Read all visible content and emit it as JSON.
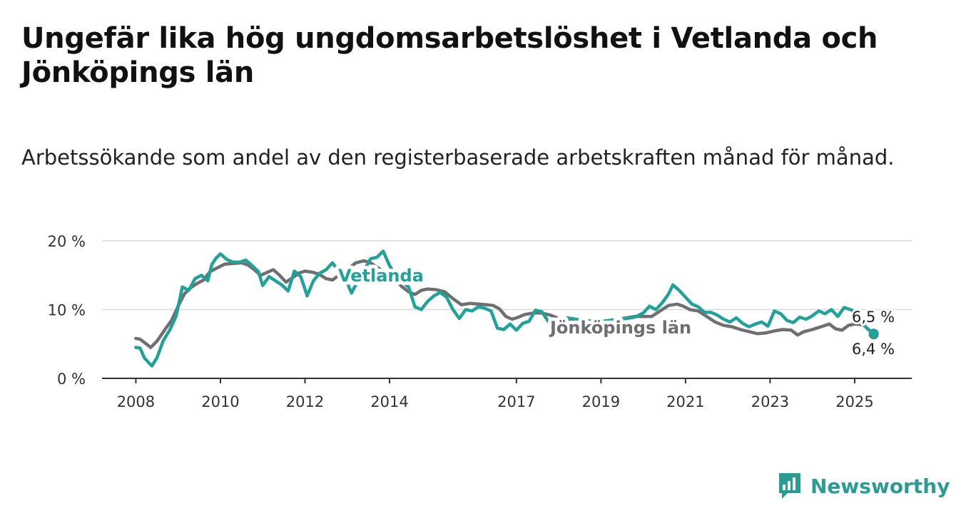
{
  "header": {
    "title": "Ungefär lika hög ungdomsarbetslöshet i Vetlanda och Jönköpings län",
    "subtitle": "Arbetssökande som andel av den registerbaserade arbetskraften månad för månad."
  },
  "brand": {
    "name": "Newsworthy",
    "icon": "bar-chart-speech-icon",
    "color": "#2a9d92"
  },
  "chart_data": {
    "type": "line",
    "x_unit": "year",
    "xlim": [
      2007.2,
      2026.35
    ],
    "ylim": [
      0,
      20
    ],
    "grid": true,
    "y_ticks": [
      {
        "value": 0,
        "label": "0 %"
      },
      {
        "value": 10,
        "label": "10 %"
      },
      {
        "value": 20,
        "label": "20 %"
      }
    ],
    "x_ticks": [
      {
        "value": 2008,
        "label": "2008"
      },
      {
        "value": 2010,
        "label": "2010"
      },
      {
        "value": 2012,
        "label": "2012"
      },
      {
        "value": 2014,
        "label": "2014"
      },
      {
        "value": 2017,
        "label": "2017"
      },
      {
        "value": 2019,
        "label": "2019"
      },
      {
        "value": 2021,
        "label": "2021"
      },
      {
        "value": 2023,
        "label": "2023"
      },
      {
        "value": 2025,
        "label": "2025"
      }
    ],
    "series": [
      {
        "name": "Jönköpings län",
        "color": "#6e6e73",
        "end_label": "6,4 %",
        "points": [
          [
            2008.0,
            5.8
          ],
          [
            2008.1,
            5.7
          ],
          [
            2008.25,
            5.0
          ],
          [
            2008.35,
            4.5
          ],
          [
            2008.5,
            5.4
          ],
          [
            2008.7,
            7.2
          ],
          [
            2008.85,
            8.5
          ],
          [
            2009.0,
            10.5
          ],
          [
            2009.15,
            12.3
          ],
          [
            2009.3,
            13.2
          ],
          [
            2009.45,
            13.8
          ],
          [
            2009.6,
            14.3
          ],
          [
            2009.75,
            15.5
          ],
          [
            2009.9,
            16.0
          ],
          [
            2010.1,
            16.6
          ],
          [
            2010.3,
            16.7
          ],
          [
            2010.5,
            16.8
          ],
          [
            2010.65,
            16.5
          ],
          [
            2010.8,
            15.8
          ],
          [
            2010.95,
            15.0
          ],
          [
            2011.1,
            15.4
          ],
          [
            2011.25,
            15.8
          ],
          [
            2011.4,
            15.0
          ],
          [
            2011.55,
            14.0
          ],
          [
            2011.7,
            14.6
          ],
          [
            2011.85,
            15.3
          ],
          [
            2012.0,
            15.6
          ],
          [
            2012.2,
            15.4
          ],
          [
            2012.35,
            15.1
          ],
          [
            2012.5,
            14.5
          ],
          [
            2012.65,
            14.3
          ],
          [
            2012.8,
            15.0
          ],
          [
            2013.0,
            15.8
          ],
          [
            2013.2,
            16.8
          ],
          [
            2013.4,
            17.1
          ],
          [
            2013.55,
            16.8
          ],
          [
            2013.7,
            16.2
          ],
          [
            2013.85,
            15.6
          ],
          [
            2014.0,
            15.0
          ],
          [
            2014.15,
            14.2
          ],
          [
            2014.3,
            13.3
          ],
          [
            2014.45,
            12.6
          ],
          [
            2014.6,
            12.2
          ],
          [
            2014.75,
            12.8
          ],
          [
            2014.9,
            13.0
          ],
          [
            2015.1,
            12.9
          ],
          [
            2015.3,
            12.6
          ],
          [
            2015.5,
            11.6
          ],
          [
            2015.7,
            10.7
          ],
          [
            2015.9,
            10.9
          ],
          [
            2016.1,
            10.8
          ],
          [
            2016.3,
            10.7
          ],
          [
            2016.45,
            10.6
          ],
          [
            2016.6,
            10.1
          ],
          [
            2016.75,
            9.0
          ],
          [
            2016.9,
            8.6
          ],
          [
            2017.05,
            8.9
          ],
          [
            2017.2,
            9.3
          ],
          [
            2017.4,
            9.5
          ],
          [
            2017.6,
            9.5
          ],
          [
            2017.8,
            9.2
          ],
          [
            2018.0,
            8.7
          ],
          [
            2018.2,
            8.6
          ],
          [
            2018.4,
            8.5
          ],
          [
            2018.6,
            8.4
          ],
          [
            2018.8,
            8.3
          ],
          [
            2019.0,
            8.2
          ],
          [
            2019.2,
            8.4
          ],
          [
            2019.4,
            8.6
          ],
          [
            2019.6,
            8.8
          ],
          [
            2019.8,
            9.0
          ],
          [
            2020.0,
            9.0
          ],
          [
            2020.2,
            9.0
          ],
          [
            2020.4,
            9.8
          ],
          [
            2020.6,
            10.6
          ],
          [
            2020.8,
            10.8
          ],
          [
            2020.95,
            10.5
          ],
          [
            2021.1,
            10.0
          ],
          [
            2021.3,
            9.8
          ],
          [
            2021.5,
            9.0
          ],
          [
            2021.7,
            8.2
          ],
          [
            2021.9,
            7.7
          ],
          [
            2022.1,
            7.5
          ],
          [
            2022.3,
            7.1
          ],
          [
            2022.5,
            6.8
          ],
          [
            2022.7,
            6.5
          ],
          [
            2022.9,
            6.6
          ],
          [
            2023.1,
            6.9
          ],
          [
            2023.3,
            7.1
          ],
          [
            2023.5,
            7.0
          ],
          [
            2023.65,
            6.3
          ],
          [
            2023.8,
            6.8
          ],
          [
            2024.0,
            7.1
          ],
          [
            2024.2,
            7.5
          ],
          [
            2024.4,
            7.9
          ],
          [
            2024.55,
            7.2
          ],
          [
            2024.7,
            7.0
          ],
          [
            2024.85,
            7.7
          ],
          [
            2025.0,
            7.9
          ],
          [
            2025.2,
            7.8
          ],
          [
            2025.35,
            7.0
          ],
          [
            2025.45,
            6.4
          ]
        ]
      },
      {
        "name": "Vetlanda",
        "color": "#1fa399",
        "end_label": "6,5 %",
        "points": [
          [
            2008.0,
            4.5
          ],
          [
            2008.1,
            4.4
          ],
          [
            2008.2,
            3.0
          ],
          [
            2008.3,
            2.3
          ],
          [
            2008.38,
            1.8
          ],
          [
            2008.5,
            3.0
          ],
          [
            2008.65,
            5.5
          ],
          [
            2008.8,
            7.0
          ],
          [
            2008.95,
            9.0
          ],
          [
            2009.1,
            13.3
          ],
          [
            2009.25,
            12.8
          ],
          [
            2009.4,
            14.5
          ],
          [
            2009.55,
            15.0
          ],
          [
            2009.7,
            14.2
          ],
          [
            2009.8,
            16.6
          ],
          [
            2009.9,
            17.5
          ],
          [
            2010.0,
            18.1
          ],
          [
            2010.15,
            17.3
          ],
          [
            2010.3,
            16.9
          ],
          [
            2010.45,
            16.9
          ],
          [
            2010.6,
            17.2
          ],
          [
            2010.75,
            16.4
          ],
          [
            2010.9,
            15.5
          ],
          [
            2011.0,
            13.5
          ],
          [
            2011.15,
            14.8
          ],
          [
            2011.3,
            14.2
          ],
          [
            2011.45,
            13.6
          ],
          [
            2011.6,
            12.7
          ],
          [
            2011.75,
            15.6
          ],
          [
            2011.9,
            14.8
          ],
          [
            2012.05,
            12.0
          ],
          [
            2012.2,
            14.2
          ],
          [
            2012.35,
            15.3
          ],
          [
            2012.5,
            15.8
          ],
          [
            2012.65,
            16.8
          ],
          [
            2012.8,
            15.6
          ],
          [
            2012.95,
            14.6
          ],
          [
            2013.1,
            12.4
          ],
          [
            2013.25,
            14.2
          ],
          [
            2013.4,
            15.7
          ],
          [
            2013.55,
            17.4
          ],
          [
            2013.7,
            17.6
          ],
          [
            2013.85,
            18.5
          ],
          [
            2014.0,
            16.4
          ],
          [
            2014.15,
            15.0
          ],
          [
            2014.3,
            14.0
          ],
          [
            2014.45,
            13.3
          ],
          [
            2014.6,
            10.4
          ],
          [
            2014.75,
            10.0
          ],
          [
            2014.9,
            11.2
          ],
          [
            2015.05,
            12.0
          ],
          [
            2015.2,
            12.5
          ],
          [
            2015.35,
            11.8
          ],
          [
            2015.5,
            10.0
          ],
          [
            2015.65,
            8.7
          ],
          [
            2015.8,
            10.0
          ],
          [
            2015.95,
            9.8
          ],
          [
            2016.1,
            10.4
          ],
          [
            2016.25,
            10.2
          ],
          [
            2016.4,
            9.8
          ],
          [
            2016.55,
            7.3
          ],
          [
            2016.7,
            7.1
          ],
          [
            2016.85,
            7.9
          ],
          [
            2017.0,
            7.0
          ],
          [
            2017.15,
            8.0
          ],
          [
            2017.3,
            8.3
          ],
          [
            2017.45,
            9.9
          ],
          [
            2017.6,
            9.7
          ],
          [
            2017.75,
            8.3
          ],
          [
            2017.9,
            8.0
          ],
          [
            2018.05,
            8.7
          ],
          [
            2018.2,
            8.8
          ],
          [
            2018.4,
            8.6
          ],
          [
            2018.6,
            8.4
          ],
          [
            2018.8,
            8.3
          ],
          [
            2019.0,
            8.3
          ],
          [
            2019.2,
            8.4
          ],
          [
            2019.4,
            8.6
          ],
          [
            2019.6,
            8.7
          ],
          [
            2019.8,
            8.9
          ],
          [
            2020.0,
            9.5
          ],
          [
            2020.15,
            10.5
          ],
          [
            2020.3,
            10.0
          ],
          [
            2020.45,
            11.0
          ],
          [
            2020.6,
            12.3
          ],
          [
            2020.7,
            13.6
          ],
          [
            2020.85,
            12.8
          ],
          [
            2021.0,
            11.8
          ],
          [
            2021.15,
            10.8
          ],
          [
            2021.3,
            10.4
          ],
          [
            2021.45,
            9.6
          ],
          [
            2021.6,
            9.6
          ],
          [
            2021.75,
            9.2
          ],
          [
            2021.9,
            8.6
          ],
          [
            2022.05,
            8.2
          ],
          [
            2022.2,
            8.8
          ],
          [
            2022.35,
            8.0
          ],
          [
            2022.5,
            7.5
          ],
          [
            2022.65,
            7.9
          ],
          [
            2022.8,
            8.2
          ],
          [
            2022.95,
            7.6
          ],
          [
            2023.1,
            9.8
          ],
          [
            2023.25,
            9.4
          ],
          [
            2023.4,
            8.4
          ],
          [
            2023.55,
            8.1
          ],
          [
            2023.7,
            8.9
          ],
          [
            2023.85,
            8.6
          ],
          [
            2024.0,
            9.1
          ],
          [
            2024.15,
            9.8
          ],
          [
            2024.3,
            9.4
          ],
          [
            2024.45,
            10.0
          ],
          [
            2024.6,
            9.0
          ],
          [
            2024.75,
            10.3
          ],
          [
            2024.9,
            10.0
          ],
          [
            2025.0,
            9.7
          ],
          [
            2025.15,
            8.3
          ],
          [
            2025.3,
            7.2
          ],
          [
            2025.45,
            6.5
          ]
        ]
      }
    ]
  }
}
